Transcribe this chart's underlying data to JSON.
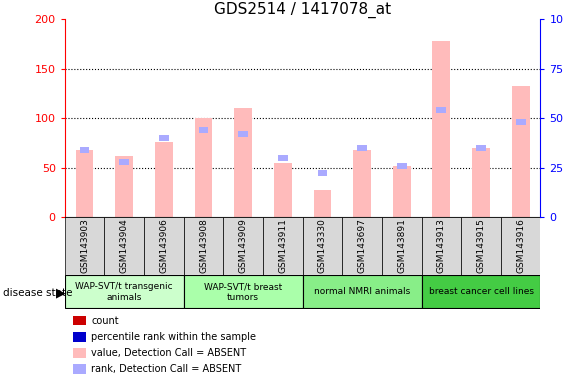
{
  "title": "GDS2514 / 1417078_at",
  "samples": [
    "GSM143903",
    "GSM143904",
    "GSM143906",
    "GSM143908",
    "GSM143909",
    "GSM143911",
    "GSM143330",
    "GSM143697",
    "GSM143891",
    "GSM143913",
    "GSM143915",
    "GSM143916"
  ],
  "absent_value": [
    68,
    62,
    76,
    100,
    110,
    55,
    27,
    68,
    52,
    178,
    70,
    132
  ],
  "absent_rank": [
    34,
    28,
    40,
    44,
    42,
    30,
    22,
    35,
    26,
    54,
    35,
    48
  ],
  "groups": [
    {
      "label": "WAP-SVT/t transgenic\nanimals",
      "start": 0,
      "end": 3,
      "color": "#ccffcc"
    },
    {
      "label": "WAP-SVT/t breast\ntumors",
      "start": 3,
      "end": 6,
      "color": "#aaffaa"
    },
    {
      "label": "normal NMRI animals",
      "start": 6,
      "end": 9,
      "color": "#88ee88"
    },
    {
      "label": "breast cancer cell lines",
      "start": 9,
      "end": 12,
      "color": "#44cc44"
    }
  ],
  "ylim_left": [
    0,
    200
  ],
  "ylim_right": [
    0,
    100
  ],
  "yticks_left": [
    0,
    50,
    100,
    150,
    200
  ],
  "yticks_right": [
    0,
    25,
    50,
    75,
    100
  ],
  "ytick_labels_right": [
    "0",
    "25",
    "50",
    "75",
    "100%"
  ],
  "absent_bar_color": "#ffbbbb",
  "absent_rank_color": "#aaaaff",
  "count_color": "#cc0000",
  "percentile_color": "#0000cc",
  "legend_items": [
    {
      "label": "count",
      "color": "#cc0000"
    },
    {
      "label": "percentile rank within the sample",
      "color": "#0000cc"
    },
    {
      "label": "value, Detection Call = ABSENT",
      "color": "#ffbbbb"
    },
    {
      "label": "rank, Detection Call = ABSENT",
      "color": "#aaaaff"
    }
  ]
}
